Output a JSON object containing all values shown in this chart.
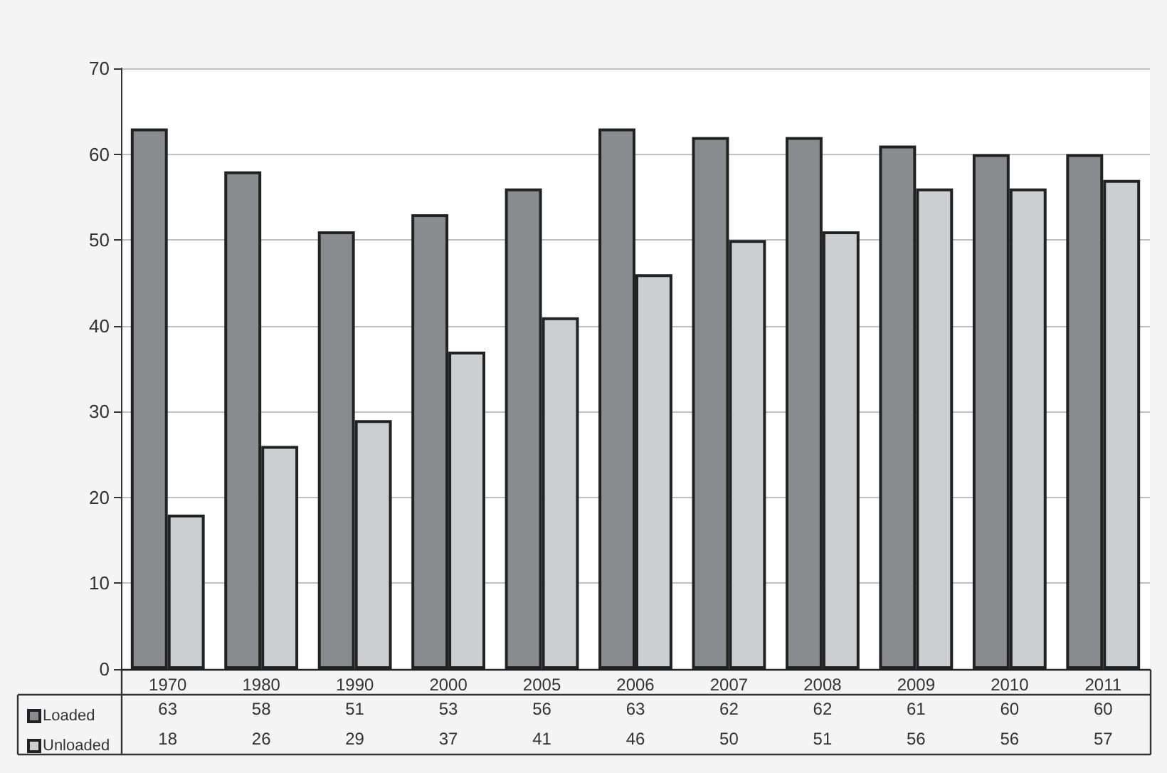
{
  "chart_data": {
    "type": "bar",
    "categories": [
      "1970",
      "1980",
      "1990",
      "2000",
      "2005",
      "2006",
      "2007",
      "2008",
      "2009",
      "2010",
      "2011"
    ],
    "series": [
      {
        "name": "Loaded",
        "color": "#8a8b8f",
        "values": [
          63,
          58,
          51,
          53,
          56,
          63,
          62,
          62,
          61,
          60,
          60
        ]
      },
      {
        "name": "Unloaded",
        "color": "#cdcecf",
        "values": [
          18,
          26,
          29,
          37,
          41,
          46,
          50,
          51,
          56,
          56,
          57
        ]
      }
    ],
    "ylim": [
      0,
      70
    ],
    "yticks": [
      0,
      10,
      20,
      30,
      40,
      50,
      60,
      70
    ],
    "grid": "y",
    "legend": "bottom left",
    "data_labels": true
  }
}
